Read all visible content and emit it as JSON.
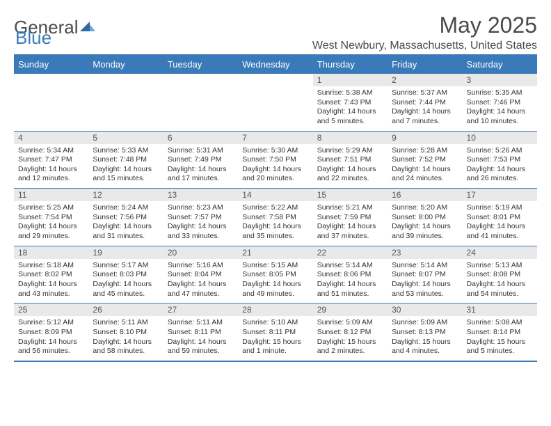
{
  "brand": {
    "part1": "General",
    "part2": "Blue"
  },
  "title": "May 2025",
  "location": "West Newbury, Massachusetts, United States",
  "colors": {
    "header_bg": "#3a7ab8",
    "header_text": "#ffffff",
    "daynum_bg": "#e9e9e9",
    "border": "#3a7ab8",
    "text": "#333333",
    "title_text": "#4a4a4a"
  },
  "typography": {
    "title_fontsize": 32,
    "location_fontsize": 16,
    "dow_fontsize": 13,
    "cell_fontsize": 10.5
  },
  "days_of_week": [
    "Sunday",
    "Monday",
    "Tuesday",
    "Wednesday",
    "Thursday",
    "Friday",
    "Saturday"
  ],
  "weeks": [
    [
      {
        "n": "",
        "lines": []
      },
      {
        "n": "",
        "lines": []
      },
      {
        "n": "",
        "lines": []
      },
      {
        "n": "",
        "lines": []
      },
      {
        "n": "1",
        "lines": [
          "Sunrise: 5:38 AM",
          "Sunset: 7:43 PM",
          "Daylight: 14 hours",
          "and 5 minutes."
        ]
      },
      {
        "n": "2",
        "lines": [
          "Sunrise: 5:37 AM",
          "Sunset: 7:44 PM",
          "Daylight: 14 hours",
          "and 7 minutes."
        ]
      },
      {
        "n": "3",
        "lines": [
          "Sunrise: 5:35 AM",
          "Sunset: 7:46 PM",
          "Daylight: 14 hours",
          "and 10 minutes."
        ]
      }
    ],
    [
      {
        "n": "4",
        "lines": [
          "Sunrise: 5:34 AM",
          "Sunset: 7:47 PM",
          "Daylight: 14 hours",
          "and 12 minutes."
        ]
      },
      {
        "n": "5",
        "lines": [
          "Sunrise: 5:33 AM",
          "Sunset: 7:48 PM",
          "Daylight: 14 hours",
          "and 15 minutes."
        ]
      },
      {
        "n": "6",
        "lines": [
          "Sunrise: 5:31 AM",
          "Sunset: 7:49 PM",
          "Daylight: 14 hours",
          "and 17 minutes."
        ]
      },
      {
        "n": "7",
        "lines": [
          "Sunrise: 5:30 AM",
          "Sunset: 7:50 PM",
          "Daylight: 14 hours",
          "and 20 minutes."
        ]
      },
      {
        "n": "8",
        "lines": [
          "Sunrise: 5:29 AM",
          "Sunset: 7:51 PM",
          "Daylight: 14 hours",
          "and 22 minutes."
        ]
      },
      {
        "n": "9",
        "lines": [
          "Sunrise: 5:28 AM",
          "Sunset: 7:52 PM",
          "Daylight: 14 hours",
          "and 24 minutes."
        ]
      },
      {
        "n": "10",
        "lines": [
          "Sunrise: 5:26 AM",
          "Sunset: 7:53 PM",
          "Daylight: 14 hours",
          "and 26 minutes."
        ]
      }
    ],
    [
      {
        "n": "11",
        "lines": [
          "Sunrise: 5:25 AM",
          "Sunset: 7:54 PM",
          "Daylight: 14 hours",
          "and 29 minutes."
        ]
      },
      {
        "n": "12",
        "lines": [
          "Sunrise: 5:24 AM",
          "Sunset: 7:56 PM",
          "Daylight: 14 hours",
          "and 31 minutes."
        ]
      },
      {
        "n": "13",
        "lines": [
          "Sunrise: 5:23 AM",
          "Sunset: 7:57 PM",
          "Daylight: 14 hours",
          "and 33 minutes."
        ]
      },
      {
        "n": "14",
        "lines": [
          "Sunrise: 5:22 AM",
          "Sunset: 7:58 PM",
          "Daylight: 14 hours",
          "and 35 minutes."
        ]
      },
      {
        "n": "15",
        "lines": [
          "Sunrise: 5:21 AM",
          "Sunset: 7:59 PM",
          "Daylight: 14 hours",
          "and 37 minutes."
        ]
      },
      {
        "n": "16",
        "lines": [
          "Sunrise: 5:20 AM",
          "Sunset: 8:00 PM",
          "Daylight: 14 hours",
          "and 39 minutes."
        ]
      },
      {
        "n": "17",
        "lines": [
          "Sunrise: 5:19 AM",
          "Sunset: 8:01 PM",
          "Daylight: 14 hours",
          "and 41 minutes."
        ]
      }
    ],
    [
      {
        "n": "18",
        "lines": [
          "Sunrise: 5:18 AM",
          "Sunset: 8:02 PM",
          "Daylight: 14 hours",
          "and 43 minutes."
        ]
      },
      {
        "n": "19",
        "lines": [
          "Sunrise: 5:17 AM",
          "Sunset: 8:03 PM",
          "Daylight: 14 hours",
          "and 45 minutes."
        ]
      },
      {
        "n": "20",
        "lines": [
          "Sunrise: 5:16 AM",
          "Sunset: 8:04 PM",
          "Daylight: 14 hours",
          "and 47 minutes."
        ]
      },
      {
        "n": "21",
        "lines": [
          "Sunrise: 5:15 AM",
          "Sunset: 8:05 PM",
          "Daylight: 14 hours",
          "and 49 minutes."
        ]
      },
      {
        "n": "22",
        "lines": [
          "Sunrise: 5:14 AM",
          "Sunset: 8:06 PM",
          "Daylight: 14 hours",
          "and 51 minutes."
        ]
      },
      {
        "n": "23",
        "lines": [
          "Sunrise: 5:14 AM",
          "Sunset: 8:07 PM",
          "Daylight: 14 hours",
          "and 53 minutes."
        ]
      },
      {
        "n": "24",
        "lines": [
          "Sunrise: 5:13 AM",
          "Sunset: 8:08 PM",
          "Daylight: 14 hours",
          "and 54 minutes."
        ]
      }
    ],
    [
      {
        "n": "25",
        "lines": [
          "Sunrise: 5:12 AM",
          "Sunset: 8:09 PM",
          "Daylight: 14 hours",
          "and 56 minutes."
        ]
      },
      {
        "n": "26",
        "lines": [
          "Sunrise: 5:11 AM",
          "Sunset: 8:10 PM",
          "Daylight: 14 hours",
          "and 58 minutes."
        ]
      },
      {
        "n": "27",
        "lines": [
          "Sunrise: 5:11 AM",
          "Sunset: 8:11 PM",
          "Daylight: 14 hours",
          "and 59 minutes."
        ]
      },
      {
        "n": "28",
        "lines": [
          "Sunrise: 5:10 AM",
          "Sunset: 8:11 PM",
          "Daylight: 15 hours",
          "and 1 minute."
        ]
      },
      {
        "n": "29",
        "lines": [
          "Sunrise: 5:09 AM",
          "Sunset: 8:12 PM",
          "Daylight: 15 hours",
          "and 2 minutes."
        ]
      },
      {
        "n": "30",
        "lines": [
          "Sunrise: 5:09 AM",
          "Sunset: 8:13 PM",
          "Daylight: 15 hours",
          "and 4 minutes."
        ]
      },
      {
        "n": "31",
        "lines": [
          "Sunrise: 5:08 AM",
          "Sunset: 8:14 PM",
          "Daylight: 15 hours",
          "and 5 minutes."
        ]
      }
    ]
  ]
}
